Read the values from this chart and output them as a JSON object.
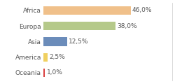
{
  "categories": [
    "Africa",
    "Europa",
    "Asia",
    "America",
    "Oceania"
  ],
  "values": [
    46.0,
    38.0,
    12.5,
    2.5,
    1.0
  ],
  "labels": [
    "46,0%",
    "38,0%",
    "12,5%",
    "2,5%",
    "1,0%"
  ],
  "bar_colors": [
    "#f0c08a",
    "#b5c98a",
    "#6b8cba",
    "#f0d060",
    "#d94040"
  ],
  "background_color": "#ffffff",
  "label_fontsize": 6.5,
  "tick_fontsize": 6.5,
  "xlim": [
    0,
    68
  ],
  "bar_height": 0.55
}
